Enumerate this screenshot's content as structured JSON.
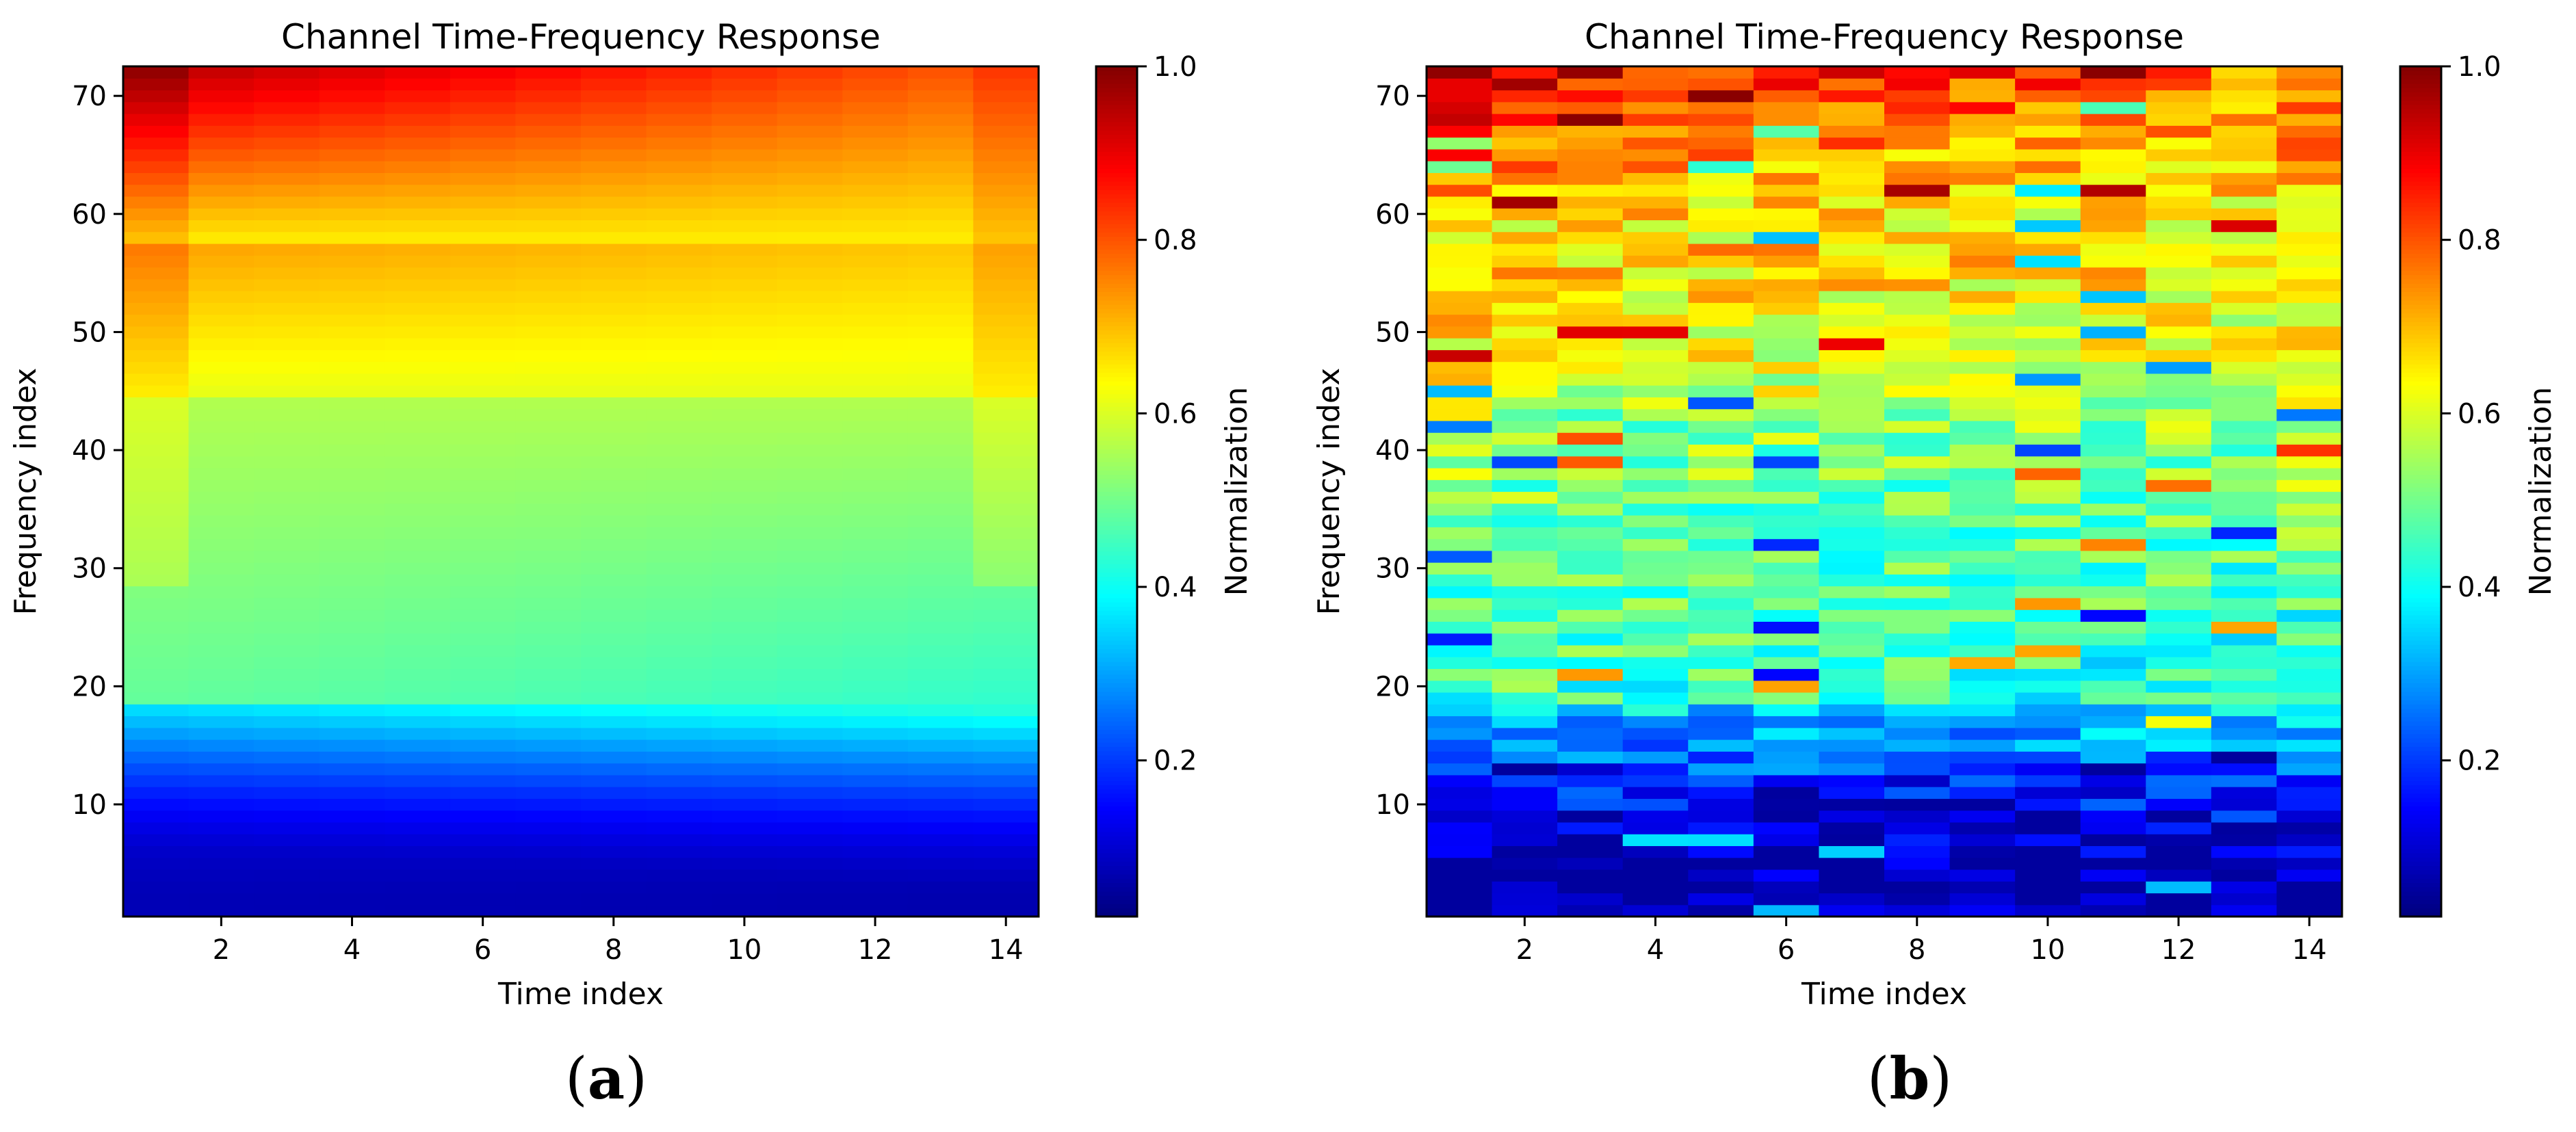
{
  "figure": {
    "panels": [
      {
        "id": "a",
        "subcaption_letter": "a"
      },
      {
        "id": "b",
        "subcaption_letter": "b"
      }
    ]
  },
  "chart_data": [
    {
      "type": "heatmap",
      "panel": "a",
      "title": "Channel Time-Frequency Response",
      "xlabel": "Time index",
      "ylabel": "Frequency index",
      "colorbar_label": "Normalization",
      "x_range": [
        1,
        14
      ],
      "y_range": [
        1,
        72
      ],
      "xlim": [
        0.5,
        14.5
      ],
      "ylim": [
        0.5,
        72.5
      ],
      "vlim": [
        0.02,
        1.0
      ],
      "xticks": [
        2,
        4,
        6,
        8,
        10,
        12,
        14
      ],
      "yticks": [
        10,
        20,
        30,
        40,
        50,
        60,
        70
      ],
      "colorbar_ticks": [
        0.2,
        0.4,
        0.6,
        0.8,
        1.0
      ],
      "colormap": "jet",
      "pattern": "smooth",
      "description_points": {
        "top_left_value": 0.96,
        "top_right_value": 0.74,
        "mid_band_value": 0.55,
        "low_band_min_value": 0.05
      }
    },
    {
      "type": "heatmap",
      "panel": "b",
      "title": "Channel Time-Frequency Response",
      "xlabel": "Time index",
      "ylabel": "Frequency index",
      "colorbar_label": "Normalization",
      "x_range": [
        1,
        14
      ],
      "y_range": [
        1,
        72
      ],
      "xlim": [
        0.5,
        14.5
      ],
      "ylim": [
        0.5,
        72.5
      ],
      "vlim": [
        0.02,
        1.0
      ],
      "xticks": [
        2,
        4,
        6,
        8,
        10,
        12,
        14
      ],
      "yticks": [
        10,
        20,
        30,
        40,
        50,
        60,
        70
      ],
      "colorbar_ticks": [
        0.2,
        0.4,
        0.6,
        0.8,
        1.0
      ],
      "colormap": "jet",
      "pattern": "noisy",
      "description_points": {
        "top_left_value": 0.93,
        "top_right_value": 0.72,
        "mid_band_value": 0.52,
        "low_band_min_value": 0.05
      }
    }
  ]
}
